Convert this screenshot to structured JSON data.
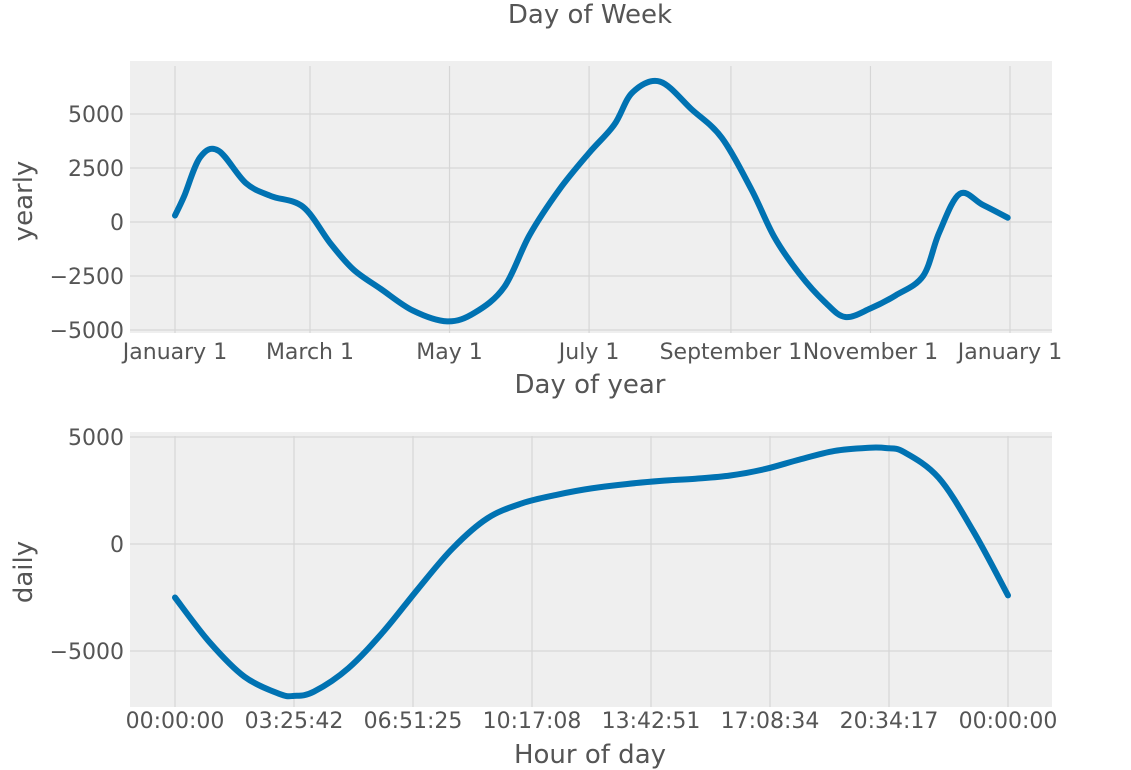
{
  "figure_title": "Day of Week",
  "colors": {
    "line": "#0072B2",
    "panel_bg": "#EFEFEF",
    "grid": "#D6D6D6",
    "text": "#555555"
  },
  "chart_data": [
    {
      "type": "line",
      "title": "",
      "xlabel": "Day of year",
      "ylabel": "yearly",
      "grid": true,
      "x_ticks": [
        "January 1",
        "March 1",
        "May 1",
        "July 1",
        "September 1",
        "November 1",
        "January 1"
      ],
      "y_ticks": [
        "5000",
        "2500",
        "0",
        "−2500",
        "−5000"
      ],
      "y_tick_values": [
        5000,
        2500,
        0,
        -2500,
        -5000
      ],
      "ylim": [
        -5000,
        7000
      ],
      "series": [
        {
          "x": [
            "2017-01-01",
            "2017-01-05",
            "2017-01-12",
            "2017-01-20",
            "2017-02-01",
            "2017-02-12",
            "2017-02-26",
            "2017-03-10",
            "2017-03-20",
            "2017-04-01",
            "2017-04-15",
            "2017-04-30",
            "2017-05-12",
            "2017-05-25",
            "2017-06-05",
            "2017-06-18",
            "2017-07-01",
            "2017-07-12",
            "2017-07-20",
            "2017-08-01",
            "2017-08-15",
            "2017-08-28",
            "2017-09-10",
            "2017-09-20",
            "2017-10-01",
            "2017-10-12",
            "2017-10-21",
            "2017-11-01",
            "2017-11-12",
            "2017-11-24",
            "2017-12-01",
            "2017-12-10",
            "2017-12-20",
            "2017-12-31"
          ],
          "y": [
            300,
            1200,
            3000,
            3300,
            1800,
            1200,
            700,
            -1000,
            -2200,
            -3100,
            -4100,
            -4600,
            -4200,
            -3000,
            -600,
            1500,
            3200,
            4500,
            6000,
            6500,
            5200,
            3900,
            1500,
            -700,
            -2400,
            -3700,
            -4400,
            -4000,
            -3400,
            -2500,
            -500,
            1300,
            800,
            200
          ]
        }
      ]
    },
    {
      "type": "line",
      "title": "",
      "xlabel": "Hour of day",
      "ylabel": "daily",
      "grid": true,
      "x_ticks": [
        "00:00:00",
        "03:25:42",
        "06:51:25",
        "10:17:08",
        "13:42:51",
        "17:08:34",
        "20:34:17",
        "00:00:00"
      ],
      "y_ticks": [
        "5000",
        "0",
        "−5000"
      ],
      "y_tick_values": [
        5000,
        0,
        -5000
      ],
      "ylim": [
        -7500,
        5500
      ],
      "series": [
        {
          "x": [
            0,
            1,
            2,
            3,
            3.43,
            4,
            5,
            6,
            7,
            8,
            9,
            10,
            11,
            12,
            13,
            14,
            15,
            16,
            17,
            18,
            19,
            20,
            20.5,
            21,
            22,
            23,
            24
          ],
          "y": [
            -2500,
            -4600,
            -6200,
            -7000,
            -7100,
            -6900,
            -5800,
            -4100,
            -2100,
            -200,
            1200,
            1900,
            2300,
            2600,
            2800,
            2950,
            3050,
            3200,
            3500,
            3950,
            4350,
            4500,
            4480,
            4300,
            3100,
            600,
            -2400
          ]
        }
      ]
    }
  ]
}
